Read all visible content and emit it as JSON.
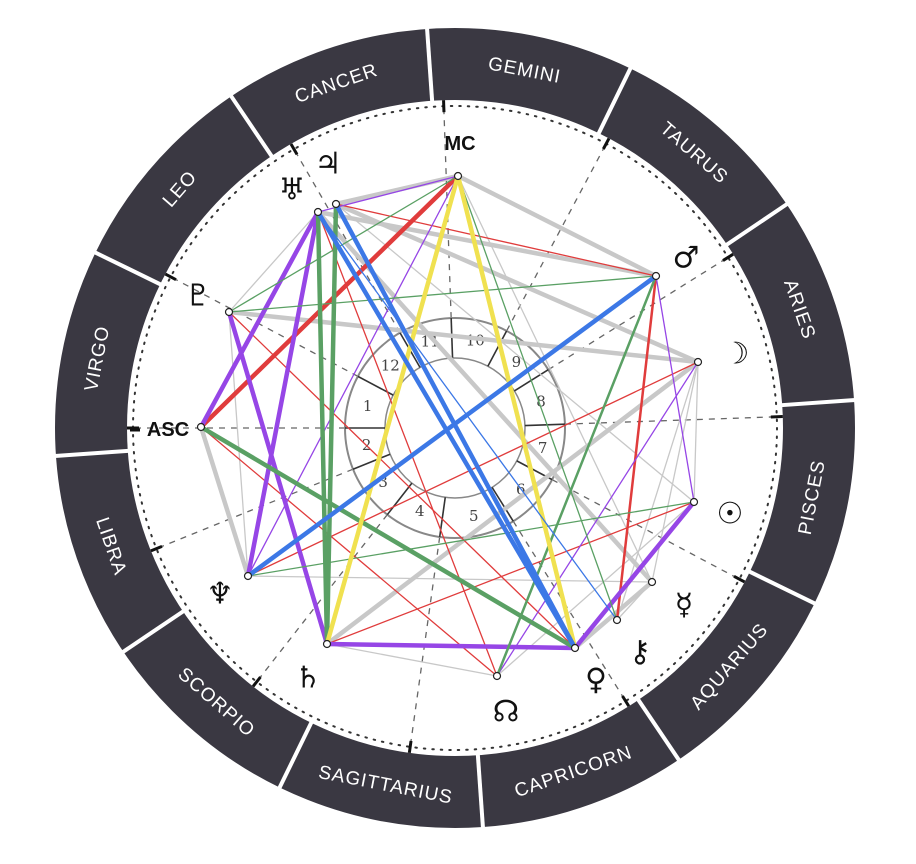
{
  "signs": [
    "GEMINI",
    "TAURUS",
    "ARIES",
    "PISCES",
    "AQUARIUS",
    "CAPRICORN",
    "SAGITTARIUS",
    "SCORPIO",
    "LIBRA",
    "VIRGO",
    "LEO",
    "CANCER"
  ],
  "houses": [
    "10",
    "9",
    "8",
    "7",
    "6",
    "5",
    "4",
    "3",
    "2",
    "1",
    "12",
    "11"
  ],
  "points": [
    {
      "id": "mc",
      "label": "MC",
      "kind": "text",
      "name": "mc-label"
    },
    {
      "id": "asc",
      "label": "ASC",
      "kind": "text",
      "name": "asc-label"
    },
    {
      "id": "jupiter",
      "label": "♃",
      "kind": "glyph",
      "name": "jupiter-icon"
    },
    {
      "id": "uranus",
      "label": "♅",
      "kind": "glyph",
      "name": "uranus-icon"
    },
    {
      "id": "pluto",
      "label": "♇",
      "kind": "glyph",
      "name": "pluto-icon"
    },
    {
      "id": "neptune",
      "label": "♆",
      "kind": "glyph",
      "name": "neptune-icon"
    },
    {
      "id": "saturn",
      "label": "♄",
      "kind": "glyph",
      "name": "saturn-icon"
    },
    {
      "id": "node",
      "label": "☊",
      "kind": "glyph",
      "name": "north-node-icon"
    },
    {
      "id": "venus",
      "label": "♀",
      "kind": "glyph",
      "name": "venus-icon"
    },
    {
      "id": "chiron",
      "label": "⚷",
      "kind": "glyph",
      "name": "chiron-icon"
    },
    {
      "id": "mercury",
      "label": "☿",
      "kind": "glyph",
      "name": "mercury-icon"
    },
    {
      "id": "sun",
      "label": "☉",
      "kind": "glyph",
      "name": "sun-icon"
    },
    {
      "id": "moon",
      "label": "☽",
      "kind": "glyph",
      "name": "moon-icon"
    },
    {
      "id": "mars",
      "label": "♂",
      "kind": "glyph",
      "name": "mars-icon"
    }
  ],
  "aspect_colors": {
    "grey": "#c8c8c8",
    "red": "#e03c3c",
    "green": "#5aa064",
    "blue": "#3c78e6",
    "purple": "#9646e6",
    "yellow": "#f0e150"
  },
  "aspects": [
    {
      "from": "mc",
      "to": "mars",
      "color": "grey",
      "weight": "thick"
    },
    {
      "from": "mc",
      "to": "venus",
      "color": "yellow",
      "weight": "thick"
    },
    {
      "from": "mc",
      "to": "saturn",
      "color": "yellow",
      "weight": "thick"
    },
    {
      "from": "mc",
      "to": "asc",
      "color": "red",
      "weight": "thick"
    },
    {
      "from": "mc",
      "to": "neptune",
      "color": "purple",
      "weight": "thin"
    },
    {
      "from": "mc",
      "to": "uranus",
      "color": "purple",
      "weight": "thin"
    },
    {
      "from": "mc",
      "to": "pluto",
      "color": "green",
      "weight": "thin"
    },
    {
      "from": "mc",
      "to": "chiron",
      "color": "green",
      "weight": "thin"
    },
    {
      "from": "mc",
      "to": "mercury",
      "color": "grey",
      "weight": "thin"
    },
    {
      "from": "mc",
      "to": "jupiter",
      "color": "grey",
      "weight": "thick"
    },
    {
      "from": "mars",
      "to": "neptune",
      "color": "blue",
      "weight": "thick"
    },
    {
      "from": "mars",
      "to": "node",
      "color": "green",
      "weight": "medium"
    },
    {
      "from": "mars",
      "to": "chiron",
      "color": "red",
      "weight": "medium"
    },
    {
      "from": "mars",
      "to": "sun",
      "color": "purple",
      "weight": "thin"
    },
    {
      "from": "mars",
      "to": "pluto",
      "color": "green",
      "weight": "thin"
    },
    {
      "from": "mars",
      "to": "jupiter",
      "color": "red",
      "weight": "thin"
    },
    {
      "from": "mars",
      "to": "uranus",
      "color": "grey",
      "weight": "thick"
    },
    {
      "from": "jupiter",
      "to": "saturn",
      "color": "green",
      "weight": "thick"
    },
    {
      "from": "jupiter",
      "to": "venus",
      "color": "blue",
      "weight": "thick"
    },
    {
      "from": "jupiter",
      "to": "moon",
      "color": "grey",
      "weight": "thick"
    },
    {
      "from": "jupiter",
      "to": "sun",
      "color": "grey",
      "weight": "thin"
    },
    {
      "from": "uranus",
      "to": "saturn",
      "color": "green",
      "weight": "thick"
    },
    {
      "from": "uranus",
      "to": "venus",
      "color": "blue",
      "weight": "thick"
    },
    {
      "from": "uranus",
      "to": "neptune",
      "color": "purple",
      "weight": "thick"
    },
    {
      "from": "uranus",
      "to": "asc",
      "color": "purple",
      "weight": "thick"
    },
    {
      "from": "uranus",
      "to": "mercury",
      "color": "grey",
      "weight": "thick"
    },
    {
      "from": "uranus",
      "to": "pluto",
      "color": "grey",
      "weight": "thin"
    },
    {
      "from": "uranus",
      "to": "chiron",
      "color": "blue",
      "weight": "thin"
    },
    {
      "from": "uranus",
      "to": "node",
      "color": "red",
      "weight": "thin"
    },
    {
      "from": "pluto",
      "to": "saturn",
      "color": "purple",
      "weight": "thick"
    },
    {
      "from": "pluto",
      "to": "moon",
      "color": "grey",
      "weight": "thick"
    },
    {
      "from": "pluto",
      "to": "venus",
      "color": "red",
      "weight": "thin"
    },
    {
      "from": "pluto",
      "to": "neptune",
      "color": "grey",
      "weight": "thin"
    },
    {
      "from": "asc",
      "to": "venus",
      "color": "green",
      "weight": "thick"
    },
    {
      "from": "asc",
      "to": "neptune",
      "color": "grey",
      "weight": "thick"
    },
    {
      "from": "asc",
      "to": "node",
      "color": "red",
      "weight": "thin"
    },
    {
      "from": "neptune",
      "to": "sun",
      "color": "green",
      "weight": "thin"
    },
    {
      "from": "neptune",
      "to": "mercury",
      "color": "grey",
      "weight": "thin"
    },
    {
      "from": "neptune",
      "to": "moon",
      "color": "red",
      "weight": "thin"
    },
    {
      "from": "saturn",
      "to": "venus",
      "color": "purple",
      "weight": "thick"
    },
    {
      "from": "saturn",
      "to": "moon",
      "color": "grey",
      "weight": "thick"
    },
    {
      "from": "saturn",
      "to": "sun",
      "color": "red",
      "weight": "thin"
    },
    {
      "from": "saturn",
      "to": "node",
      "color": "grey",
      "weight": "thin"
    },
    {
      "from": "node",
      "to": "sun",
      "color": "grey",
      "weight": "thin"
    },
    {
      "from": "node",
      "to": "moon",
      "color": "purple",
      "weight": "thin"
    },
    {
      "from": "venus",
      "to": "sun",
      "color": "purple",
      "weight": "thick"
    },
    {
      "from": "venus",
      "to": "mercury",
      "color": "grey",
      "weight": "thick"
    },
    {
      "from": "chiron",
      "to": "moon",
      "color": "grey",
      "weight": "thin"
    },
    {
      "from": "chiron",
      "to": "mercury",
      "color": "grey",
      "weight": "thin"
    },
    {
      "from": "mercury",
      "to": "moon",
      "color": "grey",
      "weight": "thin"
    },
    {
      "from": "sun",
      "to": "moon",
      "color": "grey",
      "weight": "thin"
    }
  ]
}
